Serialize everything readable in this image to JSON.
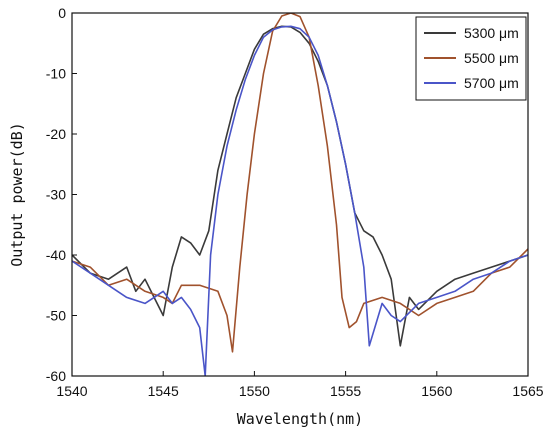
{
  "chart_data": {
    "type": "line",
    "title": "",
    "xlabel": "Wavelength(nm)",
    "ylabel": "Output power(dB)",
    "xlim": [
      1540,
      1565
    ],
    "ylim": [
      -60,
      0
    ],
    "xticks": [
      1540,
      1545,
      1550,
      1555,
      1560,
      1565
    ],
    "yticks": [
      0,
      -10,
      -20,
      -30,
      -40,
      -50,
      -60
    ],
    "grid": false,
    "legend_position": "top-right",
    "series": [
      {
        "name": "5300 μm",
        "color": "#3a3a3a",
        "x": [
          1540,
          1541,
          1542,
          1543,
          1543.5,
          1544,
          1544.5,
          1545,
          1545.5,
          1546,
          1546.5,
          1547,
          1547.5,
          1548,
          1548.5,
          1549,
          1549.5,
          1550,
          1550.5,
          1551,
          1551.5,
          1552,
          1552.5,
          1553,
          1553.5,
          1554,
          1554.5,
          1555,
          1555.5,
          1556,
          1556.5,
          1557,
          1557.5,
          1558,
          1558.5,
          1559,
          1560,
          1561,
          1562,
          1563,
          1564,
          1565
        ],
        "y": [
          -40,
          -43,
          -44,
          -42,
          -46,
          -44,
          -47,
          -50,
          -42,
          -37,
          -38,
          -40,
          -36,
          -26,
          -20,
          -14,
          -10,
          -6,
          -3.5,
          -2.6,
          -2.2,
          -2.3,
          -3.2,
          -5,
          -8,
          -12,
          -18,
          -25,
          -33,
          -36,
          -37,
          -40,
          -44,
          -55,
          -47,
          -49,
          -46,
          -44,
          -43,
          -42,
          -41,
          -40
        ]
      },
      {
        "name": "5500 μm",
        "color": "#a0522d",
        "x": [
          1540,
          1541,
          1542,
          1543,
          1544,
          1545,
          1545.5,
          1546,
          1547,
          1548,
          1548.5,
          1548.8,
          1549.2,
          1549.6,
          1550,
          1550.5,
          1551,
          1551.5,
          1552,
          1552.5,
          1553,
          1553.5,
          1554,
          1554.5,
          1554.8,
          1555.2,
          1555.6,
          1556,
          1557,
          1558,
          1559,
          1560,
          1561,
          1562,
          1563,
          1564,
          1565
        ],
        "y": [
          -41,
          -42,
          -45,
          -44,
          -46,
          -47,
          -48,
          -45,
          -45,
          -46,
          -50,
          -56,
          -42,
          -30,
          -20,
          -10,
          -3,
          -0.5,
          0,
          -0.6,
          -4,
          -12,
          -22,
          -35,
          -47,
          -52,
          -51,
          -48,
          -47,
          -48,
          -50,
          -48,
          -47,
          -46,
          -43,
          -42,
          -39
        ]
      },
      {
        "name": "5700 μm",
        "color": "#4a55c8",
        "x": [
          1540,
          1541,
          1542,
          1543,
          1544,
          1544.5,
          1545,
          1545.5,
          1546,
          1546.5,
          1547,
          1547.3,
          1547.6,
          1548,
          1548.5,
          1549,
          1549.5,
          1550,
          1550.5,
          1551,
          1551.5,
          1552,
          1552.5,
          1553,
          1553.5,
          1554,
          1554.5,
          1555,
          1555.5,
          1556,
          1556.3,
          1556.6,
          1557,
          1557.5,
          1558,
          1559,
          1560,
          1561,
          1562,
          1563,
          1564,
          1565
        ],
        "y": [
          -41,
          -43,
          -45,
          -47,
          -48,
          -47,
          -46,
          -48,
          -47,
          -49,
          -52,
          -60,
          -40,
          -30,
          -22,
          -16,
          -11,
          -7,
          -4,
          -2.8,
          -2.3,
          -2.2,
          -2.6,
          -4,
          -7,
          -12,
          -18,
          -25,
          -33,
          -42,
          -55,
          -52,
          -48,
          -50,
          -51,
          -48,
          -47,
          -46,
          -44,
          -43,
          -41,
          -40
        ]
      }
    ]
  }
}
